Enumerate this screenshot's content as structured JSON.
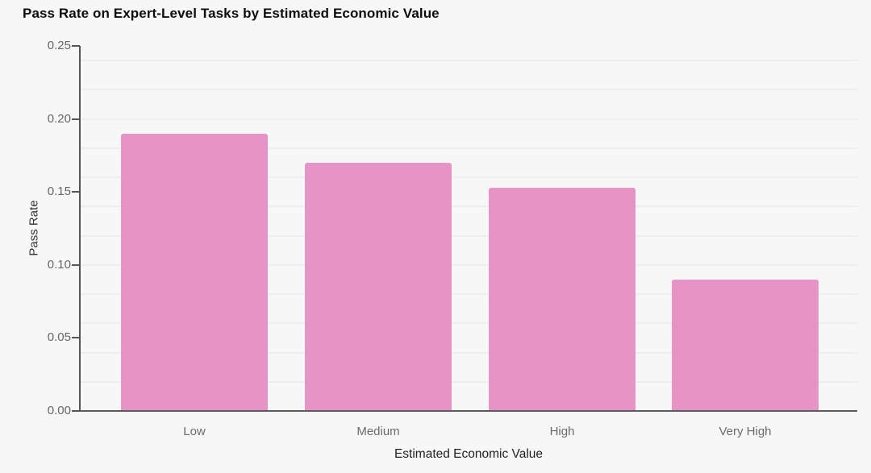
{
  "chart_data": {
    "type": "bar",
    "title": "Pass Rate on Expert-Level Tasks by Estimated Economic Value",
    "categories": [
      "Low",
      "Medium",
      "High",
      "Very High"
    ],
    "values": [
      0.19,
      0.17,
      0.153,
      0.09
    ],
    "xlabel": "Estimated Economic Value",
    "ylabel": "Pass Rate",
    "ylim": [
      0,
      0.25
    ],
    "yticks": [
      0.0,
      0.05,
      0.1,
      0.15,
      0.2,
      0.25
    ],
    "ytick_labels": [
      "0.00",
      "0.05",
      "0.10",
      "0.15",
      "0.20",
      "0.25"
    ],
    "grid": true,
    "gridline_step": 0.02,
    "legend_position": "none",
    "colors": {
      "bar_fill": "#e694c6",
      "background": "#f7f7f8",
      "axis_line": "#545454",
      "gridline": "#eeeef0",
      "ytick_label": "#666666",
      "category_label": "#6b6b6b",
      "axis_title": "#1f1f1f",
      "chart_title": "#0d0d0d"
    }
  }
}
